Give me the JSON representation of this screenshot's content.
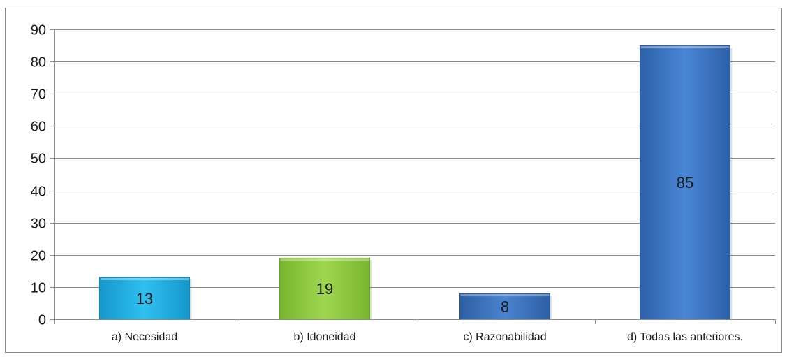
{
  "chart_data": {
    "type": "bar",
    "categories": [
      "a) Necesidad",
      "b) Idoneidad",
      "c) Razonabilidad",
      "d) Todas las anteriores."
    ],
    "values": [
      13,
      19,
      8,
      85
    ],
    "value_labels": [
      "13",
      "19",
      "8",
      "85"
    ],
    "bar_colors": [
      "#1fb4e8",
      "#8cc93e",
      "#3a70b7",
      "#3a73c0"
    ],
    "title": "",
    "xlabel": "",
    "ylabel": "",
    "ylim": [
      0,
      90
    ],
    "yticks": [
      "0",
      "10",
      "20",
      "30",
      "40",
      "50",
      "60",
      "70",
      "80",
      "90"
    ],
    "grid": true,
    "legend": "none"
  }
}
